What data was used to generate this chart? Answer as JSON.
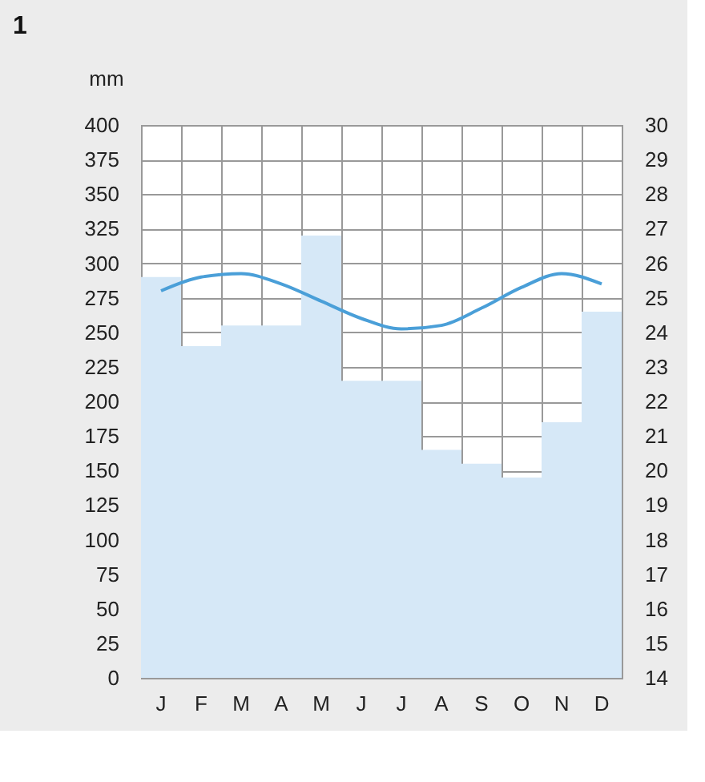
{
  "chart_data": {
    "type": "bar",
    "categories": [
      "J",
      "F",
      "M",
      "A",
      "M",
      "J",
      "J",
      "A",
      "S",
      "O",
      "N",
      "D"
    ],
    "ylabel": "mm",
    "annotations": [
      "1"
    ],
    "ylim": [
      0,
      400
    ],
    "yticks": [
      0,
      25,
      50,
      75,
      100,
      125,
      150,
      175,
      200,
      225,
      250,
      275,
      300,
      325,
      350,
      375,
      400
    ],
    "y2lim": [
      14,
      30
    ],
    "y2ticks": [
      14,
      15,
      16,
      17,
      18,
      19,
      20,
      21,
      22,
      23,
      24,
      25,
      26,
      27,
      28,
      29,
      30
    ],
    "grid": true,
    "marker": "none",
    "line_style": "solid",
    "series": [
      {
        "color": "#d6e8f7",
        "values": [
          290,
          240,
          255,
          255,
          320,
          215,
          215,
          165,
          155,
          145,
          185,
          265
        ]
      },
      {
        "type": "line",
        "axis": "y2",
        "color": "#4a9fd8",
        "values": [
          25.2,
          25.6,
          25.7,
          25.4,
          24.9,
          24.4,
          24.1,
          24.2,
          24.7,
          25.3,
          25.7,
          25.4
        ]
      }
    ]
  }
}
